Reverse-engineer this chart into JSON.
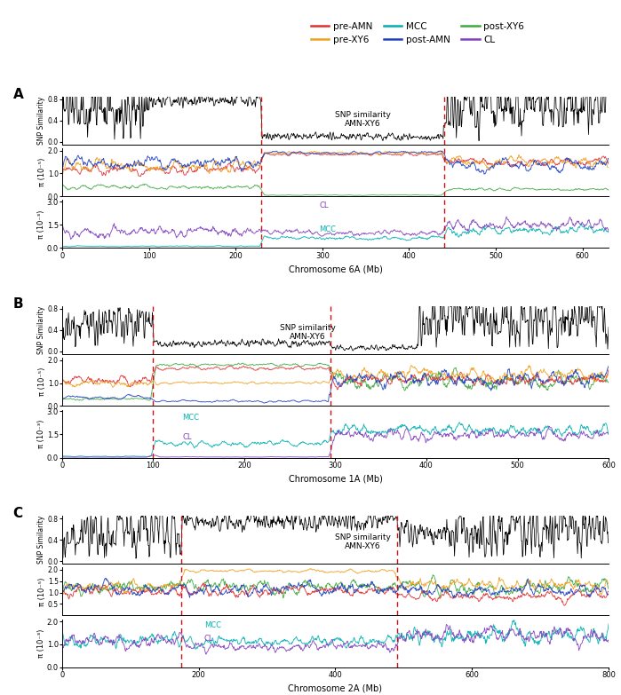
{
  "panel_labels": [
    "A",
    "B",
    "C"
  ],
  "chromosomes": [
    "6A",
    "1A",
    "2A"
  ],
  "chr_lengths": [
    630,
    600,
    800
  ],
  "dashed_lines": {
    "6A": [
      230,
      440
    ],
    "1A": [
      100,
      295
    ],
    "2A": [
      175,
      490
    ]
  },
  "snp_text_6A": "SNP similarity\nAMN-XY6",
  "snp_text_1A": "SNP similarity\nAMN-XY6",
  "snp_text_2A": "SNP similarity\nAMN-XY6",
  "snp_label": "SNP Similarity",
  "pi_label1": "π (10⁻⁵)",
  "pi_label2": "π (10⁻³)",
  "xlabel_6A": "Chromosome 6A (Mb)",
  "xlabel_1A": "Chromosome 1A (Mb)",
  "xlabel_2A": "Chromosome 2A (Mb)",
  "colors": {
    "pre_AMN": "#e03030",
    "post_AMN": "#2040c0",
    "pre_XY6": "#f0a020",
    "post_XY6": "#40a840",
    "MCC": "#00b0b0",
    "CL": "#8040c0",
    "snp": "#000000",
    "dashed": "#cc1111"
  },
  "snp_yticks_6A": [
    0.0,
    0.4,
    0.8
  ],
  "snp_yticks_1A": [
    0.0,
    0.4,
    0.8
  ],
  "snp_yticks_2A": [
    0.0,
    0.4,
    0.8
  ],
  "pi5_yticks_6A": [
    0.0,
    1.0,
    2.0
  ],
  "pi5_yticks_1A": [
    0.0,
    1.0,
    2.0
  ],
  "pi5_yticks_2A": [
    0.5,
    1.0,
    1.5,
    2.0
  ],
  "pi3_yticks_6A": [
    0.0,
    1.5,
    3.0
  ],
  "pi3_yticks_1A": [
    0.0,
    1.5,
    3.0
  ],
  "pi3_yticks_2A": [
    0.0,
    1.0,
    2.0
  ]
}
